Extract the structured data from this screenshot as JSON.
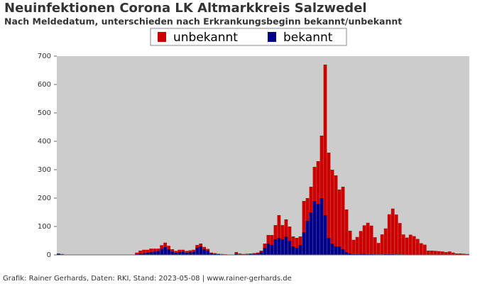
{
  "chart_data": {
    "type": "stacked-bar",
    "title": "Neuinfektionen Corona LK Altmarkkreis Salzwedel",
    "subtitle": "Nach Meldedatum, unterschieden nach Erkrankungsbeginn bekannt/unbekannt",
    "footer": "Grafik: Rainer Gerhards, Daten: RKI, Stand: 2023-05-08 | www.rainer-gerhards.de",
    "ylim": [
      0,
      700
    ],
    "yticks": [
      0,
      100,
      200,
      300,
      400,
      500,
      600,
      700
    ],
    "series": [
      {
        "name": "unbekannt",
        "color": "#cc0000",
        "values": [
          1,
          1,
          0,
          0,
          1,
          0,
          0,
          0,
          0,
          0,
          1,
          0,
          0,
          1,
          0,
          0,
          0,
          1,
          0,
          0,
          0,
          0,
          5,
          10,
          12,
          10,
          12,
          10,
          8,
          12,
          15,
          12,
          8,
          6,
          8,
          6,
          6,
          6,
          6,
          10,
          10,
          8,
          6,
          2,
          2,
          1,
          1,
          1,
          0,
          0,
          6,
          3,
          2,
          2,
          2,
          2,
          3,
          5,
          15,
          30,
          35,
          50,
          80,
          50,
          60,
          50,
          35,
          35,
          30,
          110,
          80,
          90,
          120,
          150,
          220,
          530,
          300,
          260,
          250,
          200,
          220,
          150,
          80,
          50,
          60,
          80,
          100,
          110,
          100,
          60,
          40,
          70,
          90,
          140,
          160,
          140,
          110,
          70,
          60,
          70,
          65,
          55,
          40,
          35,
          15,
          15,
          14,
          13,
          12,
          10,
          12,
          8,
          5,
          5,
          4,
          3
        ]
      },
      {
        "name": "bekannt",
        "color": "#00008b",
        "values": [
          4,
          2,
          0,
          0,
          0,
          0,
          0,
          0,
          0,
          0,
          0,
          0,
          0,
          0,
          0,
          0,
          0,
          0,
          0,
          0,
          0,
          0,
          3,
          5,
          6,
          8,
          10,
          12,
          14,
          22,
          28,
          20,
          12,
          8,
          10,
          12,
          8,
          10,
          12,
          25,
          30,
          20,
          15,
          6,
          4,
          3,
          2,
          1,
          1,
          1,
          4,
          2,
          1,
          2,
          3,
          4,
          5,
          10,
          25,
          40,
          35,
          55,
          60,
          55,
          65,
          50,
          30,
          25,
          35,
          80,
          120,
          150,
          190,
          180,
          200,
          140,
          60,
          40,
          30,
          30,
          20,
          10,
          5,
          3,
          3,
          4,
          4,
          3,
          3,
          2,
          2,
          2,
          3,
          3,
          3,
          2,
          2,
          2,
          1,
          1,
          1,
          1,
          1,
          1,
          0,
          0,
          0,
          0,
          0,
          0,
          0,
          0,
          0,
          0,
          0,
          0
        ]
      }
    ]
  }
}
